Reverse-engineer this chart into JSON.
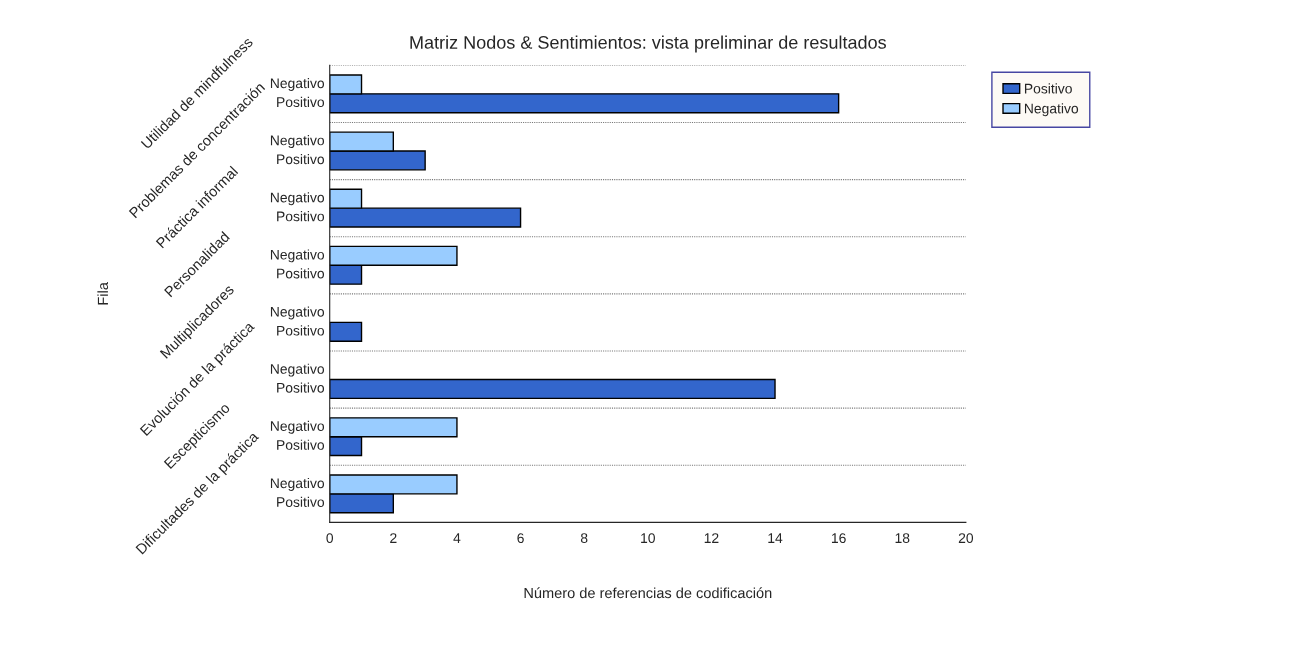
{
  "chart_data": {
    "type": "bar",
    "orientation": "horizontal",
    "title": "Matriz Nodos & Sentimientos: vista preliminar de resultados",
    "xlabel": "Número de referencias de codificación",
    "ylabel": "Fila",
    "categories": [
      "Utilidad de mindfulness",
      "Problemas de concentración",
      "Práctica informal",
      "Personalidad",
      "Multiplicadores",
      "Evolución de la práctica",
      "Escepticismo",
      "Dificultades de la práctica"
    ],
    "series": [
      {
        "name": "Positivo",
        "color": "#3366cc",
        "values": [
          16,
          3,
          6,
          1,
          1,
          14,
          1,
          2
        ]
      },
      {
        "name": "Negativo",
        "color": "#99ccff",
        "values": [
          1,
          2,
          1,
          4,
          null,
          null,
          4,
          4
        ]
      }
    ],
    "xlim": [
      0,
      20
    ],
    "xticks": [
      0,
      2,
      4,
      6,
      8,
      10,
      12,
      14,
      16,
      18,
      20
    ],
    "grid": "y",
    "legend": "right"
  }
}
